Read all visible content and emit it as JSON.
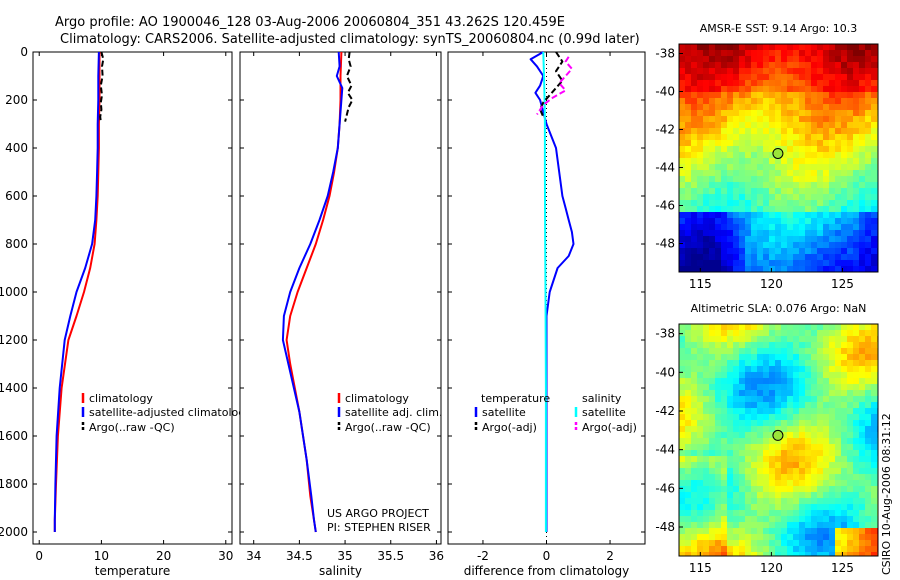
{
  "header": {
    "line1": "Argo profile: AO 1900046_128 03-Aug-2006 20060804_351 43.262S 120.459E",
    "line2": "Climatology: CARS2006. Satellite-adjusted climatology: synTS_20060804.nc (0.99d later)"
  },
  "side_text": "CSIRO 10-Aug-2006 08:31:12",
  "project_text": [
    "US ARGO PROJECT",
    "PI: STEPHEN RISER"
  ],
  "colors": {
    "climatology": "#ff0000",
    "satellite": "#0000ff",
    "argo": "#000000",
    "salinity_satellite": "#00ffff",
    "salinity_argo": "#ff00ff",
    "zero_line": "#000000"
  },
  "chart_data": [
    {
      "type": "line",
      "name": "temperature-profile",
      "xlabel": "temperature",
      "ylabel": "",
      "xlim": [
        -1,
        31
      ],
      "ylim": [
        2050,
        0
      ],
      "xticks": [
        0,
        10,
        20,
        30
      ],
      "yticks": [
        0,
        200,
        400,
        600,
        800,
        1000,
        1200,
        1400,
        1600,
        1800,
        2000
      ],
      "legend": {
        "position": "lower-right",
        "items": [
          "climatology",
          "satellite-adjusted climatology",
          "Argo(..raw -QC)"
        ]
      },
      "series": [
        {
          "name": "climatology",
          "color": "#ff0000",
          "style": "solid",
          "x": [
            9.7,
            9.7,
            9.7,
            9.6,
            9.6,
            9.5,
            9.4,
            9.2,
            8.9,
            8.2,
            7.2,
            6.0,
            4.7,
            3.6,
            3.0,
            2.7,
            2.5,
            2.5
          ],
          "y": [
            0,
            100,
            200,
            300,
            400,
            500,
            600,
            700,
            800,
            900,
            1000,
            1100,
            1200,
            1400,
            1600,
            1800,
            1950,
            2000
          ]
        },
        {
          "name": "satellite-adjusted climatology",
          "color": "#0000ff",
          "style": "solid",
          "x": [
            9.6,
            9.5,
            9.5,
            9.4,
            9.4,
            9.3,
            9.2,
            9.0,
            8.5,
            7.4,
            6.0,
            5.0,
            4.1,
            3.3,
            2.8,
            2.6,
            2.5,
            2.5
          ],
          "y": [
            0,
            100,
            200,
            300,
            400,
            500,
            600,
            700,
            800,
            900,
            1000,
            1100,
            1200,
            1400,
            1600,
            1800,
            1950,
            2000
          ]
        },
        {
          "name": "Argo(..raw -QC)",
          "color": "#000000",
          "style": "dashed",
          "x": [
            10.0,
            10.3,
            10.1,
            10.2,
            9.9,
            10.1,
            9.9,
            10.0,
            9.8,
            9.9
          ],
          "y": [
            0,
            30,
            60,
            100,
            140,
            180,
            210,
            240,
            270,
            290
          ]
        }
      ]
    },
    {
      "type": "line",
      "name": "salinity-profile",
      "xlabel": "salinity",
      "ylabel": "",
      "xlim": [
        33.85,
        36.05
      ],
      "ylim": [
        2050,
        0
      ],
      "xticks": [
        34,
        34.5,
        35,
        35.5,
        36
      ],
      "xtick_labels": [
        "34",
        "34.5",
        "35",
        "35.5",
        "36"
      ],
      "legend": {
        "position": "lower-right",
        "items": [
          "climatology",
          "satellite adj. clim.",
          "Argo(..raw -QC)"
        ]
      },
      "series": [
        {
          "name": "climatology",
          "color": "#ff0000",
          "style": "solid",
          "x": [
            34.96,
            34.95,
            34.95,
            34.94,
            34.92,
            34.88,
            34.83,
            34.76,
            34.68,
            34.58,
            34.48,
            34.4,
            34.36,
            34.4,
            34.5,
            34.58,
            34.62,
            34.66,
            34.68
          ],
          "y": [
            0,
            100,
            200,
            300,
            400,
            500,
            600,
            700,
            800,
            900,
            1000,
            1100,
            1200,
            1300,
            1500,
            1700,
            1850,
            1950,
            2000
          ]
        },
        {
          "name": "satellite adj. clim.",
          "color": "#0000ff",
          "style": "solid",
          "x": [
            34.93,
            34.94,
            34.91,
            34.97,
            34.95,
            34.92,
            34.87,
            34.81,
            34.72,
            34.62,
            34.5,
            34.4,
            34.33,
            34.32,
            34.38,
            34.5,
            34.58,
            34.63,
            34.66,
            34.68
          ],
          "y": [
            0,
            60,
            100,
            150,
            250,
            400,
            500,
            600,
            700,
            800,
            900,
            1000,
            1100,
            1200,
            1300,
            1500,
            1700,
            1850,
            1950,
            2000
          ]
        },
        {
          "name": "Argo(..raw -QC)",
          "color": "#000000",
          "style": "dashed",
          "x": [
            35.05,
            35.04,
            35.06,
            35.02,
            35.07,
            35.03,
            35.08,
            35.04,
            35.02,
            35.0
          ],
          "y": [
            0,
            30,
            60,
            100,
            140,
            170,
            200,
            230,
            260,
            290
          ]
        }
      ]
    },
    {
      "type": "line",
      "name": "difference-profile",
      "xlabel": "difference from climatology",
      "ylabel": "",
      "xlim": [
        -3.1,
        3.1
      ],
      "ylim": [
        2050,
        0
      ],
      "xticks": [
        -2,
        0,
        2
      ],
      "legend": {
        "position": "lower-right",
        "headers": [
          "temperature",
          "salinity"
        ],
        "items": [
          "satellite",
          "Argo(-adj)",
          "satellite",
          "Argo(-adj)"
        ]
      },
      "series": [
        {
          "name": "temperature satellite",
          "color": "#0000ff",
          "style": "solid",
          "x": [
            -0.1,
            -0.5,
            -0.3,
            -0.1,
            -0.2,
            -0.35,
            -0.2,
            0.0,
            0.3,
            0.4,
            0.5,
            0.6,
            0.7,
            0.8,
            0.85,
            0.7,
            0.35,
            0.1,
            0.0,
            0.0,
            0.0
          ],
          "y": [
            0,
            30,
            60,
            100,
            140,
            170,
            200,
            300,
            400,
            500,
            600,
            650,
            700,
            750,
            800,
            850,
            900,
            1000,
            1100,
            1500,
            2000
          ]
        },
        {
          "name": "salinity satellite",
          "color": "#00ffff",
          "style": "solid",
          "x": [
            -0.1,
            -0.08,
            -0.06,
            -0.05,
            -0.05,
            -0.04,
            -0.03,
            -0.02,
            -0.02,
            -0.02
          ],
          "y": [
            0,
            100,
            200,
            300,
            500,
            800,
            1000,
            1400,
            1800,
            2000
          ]
        },
        {
          "name": "temperature Argo(-adj)",
          "color": "#000000",
          "style": "dashed",
          "x": [
            0.3,
            0.5,
            0.3,
            0.5,
            0.3,
            0.1,
            -0.1,
            -0.2,
            -0.1
          ],
          "y": [
            0,
            40,
            80,
            120,
            150,
            180,
            210,
            240,
            270
          ]
        },
        {
          "name": "salinity Argo(-adj)",
          "color": "#ff00ff",
          "style": "dashed",
          "x": [
            0.7,
            0.6,
            0.8,
            0.6,
            0.4,
            0.6,
            0.2,
            -0.1,
            -0.3
          ],
          "y": [
            20,
            40,
            70,
            100,
            130,
            160,
            190,
            220,
            260
          ]
        }
      ]
    },
    {
      "type": "heatmap",
      "name": "sst-map",
      "title": "AMSR-E SST: 9.14 Argo: 10.3",
      "xlim": [
        113.5,
        127.5
      ],
      "ylim": [
        -49.5,
        -37.5
      ],
      "xticks": [
        115,
        120,
        125
      ],
      "yticks": [
        -38,
        -40,
        -42,
        -44,
        -46,
        -48
      ],
      "marker": {
        "lon": 120.459,
        "lat": -43.262
      }
    },
    {
      "type": "heatmap",
      "name": "sla-map",
      "title": "Altimetric SLA: 0.076 Argo: NaN",
      "xlim": [
        113.5,
        127.5
      ],
      "ylim": [
        -49.5,
        -37.5
      ],
      "xticks": [
        115,
        120,
        125
      ],
      "yticks": [
        -38,
        -40,
        -42,
        -44,
        -46,
        -48
      ],
      "marker": {
        "lon": 120.459,
        "lat": -43.262
      }
    }
  ]
}
